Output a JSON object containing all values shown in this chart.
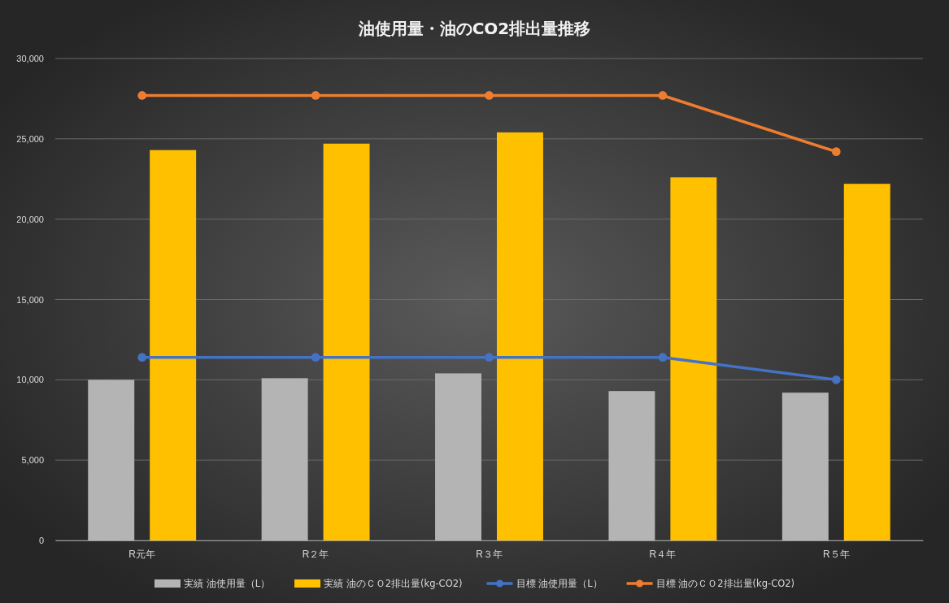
{
  "chart_data": {
    "type": "bar",
    "title": "油使用量・油のCO2排出量推移",
    "categories": [
      "R元年",
      "R２年",
      "R３年",
      "R４年",
      "R５年"
    ],
    "series": [
      {
        "name": "実績 油使用量（L）",
        "color": "#b4b4b4",
        "values": [
          10000,
          10100,
          10400,
          9300,
          9200
        ]
      },
      {
        "name": "実績 油のＣＯ2排出量(kg-CO2)",
        "color": "#ffc000",
        "values": [
          24300,
          24700,
          25400,
          22600,
          22200
        ]
      },
      {
        "name": "目標 油使用量（L）",
        "type": "line",
        "color": "#4472c4",
        "values": [
          11400,
          11400,
          11400,
          11400,
          10000
        ]
      },
      {
        "name": "目標 油のＣＯ2排出量(kg-CO2)",
        "type": "line",
        "color": "#ed7d31",
        "values": [
          27700,
          27700,
          27700,
          27700,
          24200
        ]
      }
    ],
    "ylim": [
      0,
      30000
    ],
    "yticks": [
      {
        "value": 0,
        "label": "0"
      },
      {
        "value": 5000,
        "label": "5,000"
      },
      {
        "value": 10000,
        "label": "10,000"
      },
      {
        "value": 15000,
        "label": "15,000"
      },
      {
        "value": 20000,
        "label": "20,000"
      },
      {
        "value": 25000,
        "label": "25,000"
      },
      {
        "value": 30000,
        "label": "30,000"
      }
    ],
    "grid": "y",
    "legend": "bottom",
    "marker": "circle"
  }
}
